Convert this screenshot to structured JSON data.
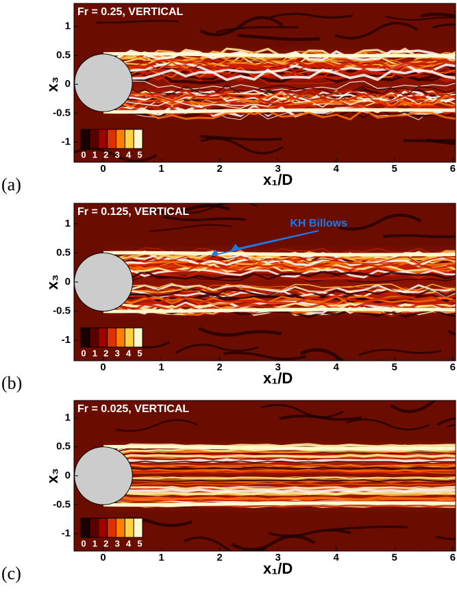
{
  "chart_data": [
    {
      "type": "contour",
      "panel_label": "(a)",
      "title": "Fr = 0.25, VERTICAL",
      "xlabel": "x₁/D",
      "ylabel": "x₃",
      "xlim": [
        -0.5,
        6.05
      ],
      "xticks": [
        0,
        1,
        2,
        3,
        4,
        5,
        6
      ],
      "ylim": [
        -1.35,
        1.4
      ],
      "yticks": [
        -1,
        -0.5,
        0,
        0.5,
        1
      ],
      "clim": [
        0,
        5
      ],
      "cticks": [
        0,
        1,
        2,
        3,
        4,
        5
      ],
      "colormap": [
        "#1a0000",
        "#5a0000",
        "#a00000",
        "#e03000",
        "#ff8000",
        "#ffd040",
        "#fff8d0"
      ]
    },
    {
      "type": "contour",
      "panel_label": "(b)",
      "title": "Fr = 0.125, VERTICAL",
      "xlabel": "x₁/D",
      "ylabel": "x₃",
      "xlim": [
        -0.5,
        6.05
      ],
      "xticks": [
        0,
        1,
        2,
        3,
        4,
        5,
        6
      ],
      "ylim": [
        -1.35,
        1.35
      ],
      "yticks": [
        -1,
        -0.5,
        0,
        0.5,
        1
      ],
      "clim": [
        0,
        5
      ],
      "cticks": [
        0,
        1,
        2,
        3,
        4,
        5
      ],
      "colormap": [
        "#1a0000",
        "#5a0000",
        "#a00000",
        "#e03000",
        "#ff8000",
        "#ffd040",
        "#fff8d0"
      ],
      "annotation": {
        "text": "KH Billows",
        "color": "#1e78e6"
      }
    },
    {
      "type": "contour",
      "panel_label": "(c)",
      "title": "Fr = 0.025, VERTICAL",
      "xlabel": "x₁/D",
      "ylabel": "x₃",
      "xlim": [
        -0.5,
        6.05
      ],
      "xticks": [
        0,
        1,
        2,
        3,
        4,
        5,
        6
      ],
      "ylim": [
        -1.3,
        1.3
      ],
      "yticks": [
        -1,
        -0.5,
        0,
        0.5,
        1
      ],
      "clim": [
        0,
        5
      ],
      "cticks": [
        0,
        1,
        2,
        3,
        4,
        5
      ],
      "colormap": [
        "#1a0000",
        "#5a0000",
        "#a00000",
        "#e03000",
        "#ff8000",
        "#ffd040",
        "#fff8d0"
      ]
    }
  ]
}
